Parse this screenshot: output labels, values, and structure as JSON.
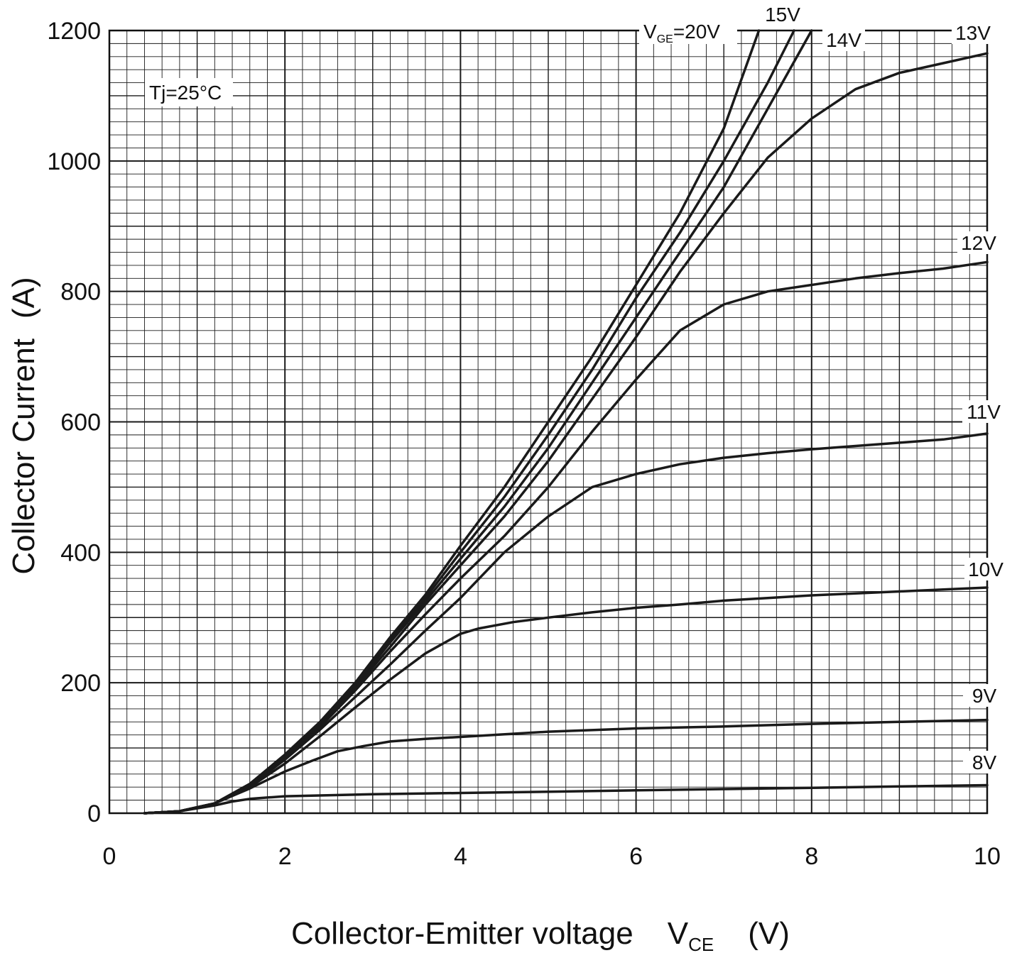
{
  "chart_data": {
    "type": "line",
    "xlabel": "Collector-Emitter voltage",
    "xlabel_symbol": "V",
    "xlabel_symbol_sub": "CE",
    "xlabel_unit": "(V)",
    "ylabel": "Collector Current",
    "ylabel_unit": "(A)",
    "xlim": [
      0,
      10
    ],
    "ylim": [
      0,
      1200
    ],
    "x_ticks": [
      "0",
      "2",
      "4",
      "6",
      "8",
      "10"
    ],
    "y_ticks": [
      "0",
      "200",
      "400",
      "600",
      "800",
      "1000",
      "1200"
    ],
    "x_tick_values": [
      0,
      2,
      4,
      6,
      8,
      10
    ],
    "y_tick_values": [
      0,
      200,
      400,
      600,
      800,
      1000,
      1200
    ],
    "grid": true,
    "annotation": "Tj=25°C",
    "series_label_prefix": "V",
    "series_label_prefix_sub": "GE",
    "series": [
      {
        "name": "20V",
        "label": "=20V",
        "x": [
          0.4,
          0.8,
          1.2,
          1.6,
          2.0,
          2.4,
          2.8,
          3.2,
          3.6,
          4.0,
          4.5,
          5.0,
          5.5,
          6.0,
          6.5,
          7.0,
          7.4
        ],
        "y": [
          0,
          3,
          15,
          45,
          90,
          140,
          200,
          270,
          335,
          410,
          500,
          600,
          700,
          810,
          920,
          1050,
          1200
        ]
      },
      {
        "name": "15V",
        "label": "15V",
        "x": [
          0.4,
          0.8,
          1.2,
          1.6,
          2.0,
          2.4,
          2.8,
          3.2,
          3.6,
          4.0,
          4.5,
          5.0,
          5.5,
          6.0,
          6.5,
          7.0,
          7.5,
          7.8
        ],
        "y": [
          0,
          3,
          15,
          45,
          88,
          138,
          198,
          265,
          330,
          400,
          485,
          580,
          680,
          790,
          890,
          1000,
          1120,
          1200
        ]
      },
      {
        "name": "14V",
        "label": "14V",
        "x": [
          0.4,
          0.8,
          1.2,
          1.6,
          2.0,
          2.4,
          2.8,
          3.2,
          3.6,
          4.0,
          4.5,
          5.0,
          5.5,
          6.0,
          6.5,
          7.0,
          7.5,
          8.0
        ],
        "y": [
          0,
          3,
          15,
          44,
          87,
          136,
          195,
          262,
          325,
          390,
          470,
          560,
          660,
          760,
          860,
          960,
          1080,
          1200
        ]
      },
      {
        "name": "13V",
        "label": "13V",
        "x": [
          0.4,
          0.8,
          1.2,
          1.6,
          2.0,
          2.4,
          2.8,
          3.2,
          3.6,
          4.0,
          4.5,
          5.0,
          5.5,
          6.0,
          6.5,
          7.0,
          7.5,
          8.0,
          8.5,
          9.0,
          9.5,
          10.0
        ],
        "y": [
          0,
          3,
          15,
          44,
          86,
          134,
          192,
          255,
          320,
          380,
          455,
          540,
          635,
          730,
          830,
          920,
          1005,
          1065,
          1110,
          1135,
          1150,
          1165
        ]
      },
      {
        "name": "12V",
        "label": "12V",
        "x": [
          0.4,
          0.8,
          1.2,
          1.6,
          2.0,
          2.4,
          2.8,
          3.2,
          3.6,
          4.0,
          4.5,
          5.0,
          5.5,
          6.0,
          6.5,
          7.0,
          7.5,
          8.0,
          8.5,
          9.0,
          9.5,
          10.0
        ],
        "y": [
          0,
          3,
          15,
          43,
          85,
          132,
          188,
          248,
          305,
          360,
          425,
          500,
          585,
          665,
          740,
          780,
          800,
          810,
          820,
          828,
          835,
          845
        ]
      },
      {
        "name": "11V",
        "label": "11V",
        "x": [
          0.4,
          0.8,
          1.2,
          1.6,
          2.0,
          2.4,
          2.8,
          3.2,
          3.6,
          4.0,
          4.5,
          5.0,
          5.5,
          6.0,
          6.5,
          7.0,
          7.5,
          8.0,
          8.5,
          9.0,
          9.5,
          10.0
        ],
        "y": [
          0,
          3,
          15,
          42,
          82,
          128,
          178,
          228,
          280,
          330,
          400,
          455,
          500,
          520,
          535,
          545,
          552,
          558,
          563,
          568,
          573,
          582
        ]
      },
      {
        "name": "10V",
        "label": "10V",
        "x": [
          0.4,
          0.8,
          1.2,
          1.6,
          2.0,
          2.4,
          2.8,
          3.2,
          3.6,
          4.0,
          4.2,
          4.6,
          5.0,
          5.5,
          6.0,
          6.5,
          7.0,
          7.5,
          8.0,
          8.5,
          9.0,
          9.5,
          10.0
        ],
        "y": [
          0,
          3,
          15,
          40,
          76,
          118,
          162,
          205,
          245,
          275,
          283,
          293,
          300,
          308,
          315,
          320,
          326,
          330,
          334,
          337,
          340,
          343,
          346
        ]
      },
      {
        "name": "9V",
        "label": "9V",
        "x": [
          0.4,
          0.8,
          1.2,
          1.6,
          2.0,
          2.3,
          2.6,
          2.9,
          3.2,
          3.6,
          4.0,
          5.0,
          6.0,
          7.0,
          8.0,
          9.0,
          10.0
        ],
        "y": [
          0,
          3,
          15,
          38,
          64,
          80,
          95,
          103,
          110,
          114,
          117,
          125,
          130,
          133,
          137,
          140,
          143
        ]
      },
      {
        "name": "8V",
        "label": "8V",
        "x": [
          0.4,
          0.8,
          1.2,
          1.4,
          1.6,
          1.8,
          2.0,
          3.0,
          4.0,
          5.0,
          6.0,
          7.0,
          8.0,
          9.0,
          10.0
        ],
        "y": [
          0,
          3,
          12,
          18,
          22,
          24,
          26,
          29,
          31,
          33,
          35,
          37,
          39,
          41,
          43
        ]
      }
    ]
  }
}
